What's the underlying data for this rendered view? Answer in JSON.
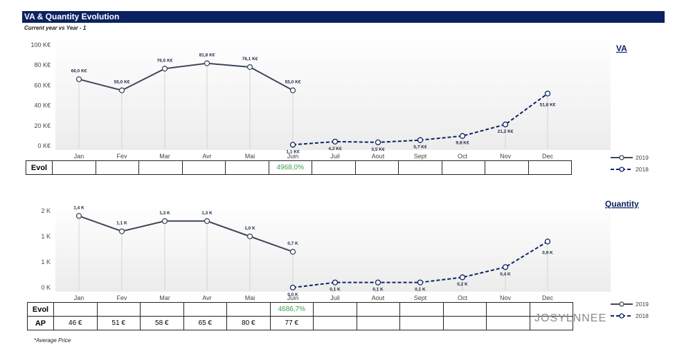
{
  "header": {
    "title": "VA & Quantity Evolution",
    "subtitle": "Current year vs Year - 1"
  },
  "colors": {
    "title_bar": "#0b2161",
    "series_2019": "#3d4759",
    "series_2018": "#0b2161",
    "positive_evol": "#3aa04a"
  },
  "chart_data": [
    {
      "type": "line",
      "title": "VA",
      "categories": [
        "Jan",
        "Fev",
        "Mar",
        "Avr",
        "Mai",
        "Juin",
        "Juil",
        "Aout",
        "Sept",
        "Oct",
        "Nov",
        "Dec"
      ],
      "y_ticks": [
        "0 K€",
        "20 K€",
        "40 K€",
        "60 K€",
        "80 K€",
        "100 K€"
      ],
      "ylim": [
        0,
        100
      ],
      "legend_position": "right",
      "series": [
        {
          "name": "2019",
          "style": "solid",
          "values": [
            66.0,
            55.0,
            76.5,
            81.8,
            78.1,
            55.0,
            null,
            null,
            null,
            null,
            null,
            null
          ],
          "labels": [
            "66,0 K€",
            "55,0 K€",
            "76,5 K€",
            "81,8 K€",
            "78,1 K€",
            "55,0 K€",
            "",
            "",
            "",
            "",
            "",
            ""
          ]
        },
        {
          "name": "2018",
          "style": "dashed",
          "values": [
            null,
            null,
            null,
            null,
            null,
            1.1,
            4.2,
            3.5,
            5.7,
            9.8,
            21.2,
            51.8
          ],
          "labels": [
            "",
            "",
            "",
            "",
            "",
            "1,1 K€",
            "4,2 K€",
            "3,5 K€",
            "5,7 K€",
            "9,8 K€",
            "21,2 K€",
            "51,8 K€"
          ]
        }
      ],
      "table_rows": [
        {
          "header": "Evol",
          "cells": [
            "",
            "",
            "",
            "",
            "",
            "4968,0%",
            "",
            "",
            "",
            "",
            "",
            ""
          ]
        }
      ]
    },
    {
      "type": "line",
      "title": "Quantity",
      "categories": [
        "Jan",
        "Fev",
        "Mar",
        "Avr",
        "Mai",
        "Juin",
        "Juil",
        "Aout",
        "Sept",
        "Oct",
        "Nov",
        "Dec"
      ],
      "y_ticks": [
        "0 K",
        "1 K",
        "1 K",
        "2 K"
      ],
      "ylim": [
        0,
        1.5
      ],
      "legend_position": "right",
      "series": [
        {
          "name": "2019",
          "style": "solid",
          "values": [
            1.4,
            1.1,
            1.3,
            1.3,
            1.0,
            0.7,
            null,
            null,
            null,
            null,
            null,
            null
          ],
          "labels": [
            "1,4 K",
            "1,1 K",
            "1,3 K",
            "1,3 K",
            "1,0 K",
            "0,7 K",
            "",
            "",
            "",
            "",
            "",
            ""
          ]
        },
        {
          "name": "2018",
          "style": "dashed",
          "values": [
            null,
            null,
            null,
            null,
            null,
            0.0,
            0.1,
            0.1,
            0.1,
            0.2,
            0.4,
            0.9
          ],
          "labels": [
            "",
            "",
            "",
            "",
            "",
            "0,0 K",
            "0,1 K",
            "0,1 K",
            "0,1 K",
            "0,2 K",
            "0,4 K",
            "0,9 K"
          ]
        }
      ],
      "table_rows": [
        {
          "header": "Evol",
          "cells": [
            "",
            "",
            "",
            "",
            "",
            "4686,7%",
            "",
            "",
            "",
            "",
            "",
            ""
          ]
        },
        {
          "header": "AP",
          "cells": [
            "46 €",
            "51 €",
            "58 €",
            "65 €",
            "80 €",
            "77 €",
            "",
            "",
            "",
            "",
            "",
            ""
          ]
        }
      ]
    }
  ],
  "footnote": "*Average Price",
  "watermark": "JOSYLNNEE"
}
